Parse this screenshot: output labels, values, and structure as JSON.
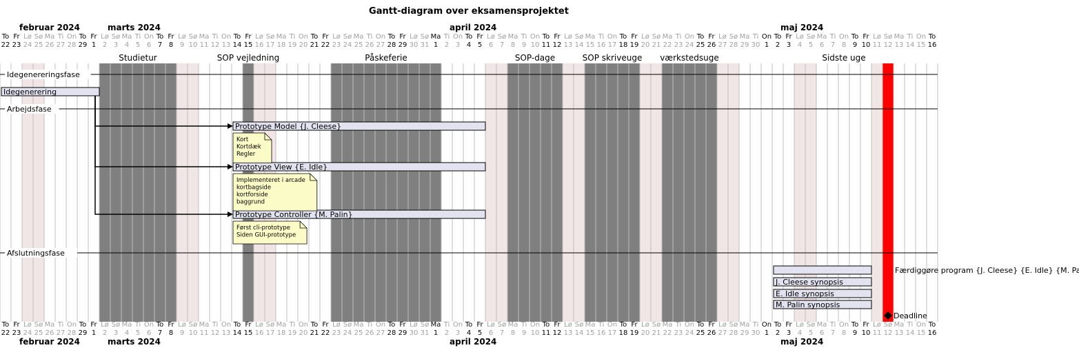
{
  "chart_data": {
    "type": "gantt",
    "title": "Gantt-diagram over eksamensprojektet",
    "start_date": "2024-02-22",
    "end_date": "2024-05-16",
    "day_names": [
      "Ma",
      "Ti",
      "On",
      "To",
      "Fr",
      "Lø",
      "Sø"
    ],
    "months": [
      {
        "label": "februar 2024",
        "start": "2024-02-22"
      },
      {
        "label": "marts 2024",
        "start": "2024-03-01"
      },
      {
        "label": "april 2024",
        "start": "2024-04-01"
      },
      {
        "label": "maj 2024",
        "start": "2024-05-01"
      }
    ],
    "closed_periods": [
      {
        "label": "Studietur",
        "start": "2024-03-02",
        "end": "2024-03-08"
      },
      {
        "label": "SOP vejledning",
        "start": "2024-03-15",
        "end": "2024-03-15"
      },
      {
        "label": "Påskeferie",
        "start": "2024-03-23",
        "end": "2024-04-01"
      },
      {
        "label": "SOP-dage",
        "start": "2024-04-08",
        "end": "2024-04-12"
      },
      {
        "label": "SOP skriveuge",
        "start": "2024-04-15",
        "end": "2024-04-19"
      },
      {
        "label": "værkstedsuge",
        "start": "2024-04-22",
        "end": "2024-04-26"
      }
    ],
    "labeled_periods": [
      {
        "label": "Sidste uge",
        "start": "2024-05-06",
        "end": "2024-05-10"
      }
    ],
    "highlight_days": [
      {
        "date": "2024-05-12",
        "color": "#ff0000"
      }
    ],
    "separators": [
      "Idegenereringsfase",
      "Arbejdsfase",
      "Afslutningsfase"
    ],
    "tasks": [
      {
        "label": "Idegenerering",
        "start": "2024-02-22",
        "end": "2024-03-01"
      },
      {
        "label": "Prototype Model {J. Cleese}",
        "start": "2024-03-14",
        "end": "2024-04-05"
      },
      {
        "label": "Prototype View {E. Idle}",
        "start": "2024-03-14",
        "end": "2024-04-05"
      },
      {
        "label": "Prototype Controller {M. Palin}",
        "start": "2024-03-14",
        "end": "2024-04-05"
      },
      {
        "label": "Færdiggøre program {J. Cleese} {E. Idle} {M. Palin}",
        "start": "2024-05-02",
        "end": "2024-05-10"
      },
      {
        "label": "J. Cleese synopsis",
        "start": "2024-05-02",
        "end": "2024-05-10"
      },
      {
        "label": "E. Idle synopsis",
        "start": "2024-05-02",
        "end": "2024-05-10"
      },
      {
        "label": "M. Palin synopsis",
        "start": "2024-05-02",
        "end": "2024-05-10"
      }
    ],
    "milestones": [
      {
        "label": "Deadline",
        "date": "2024-05-12"
      }
    ],
    "dependencies": [
      {
        "from": "Idegenerering",
        "to": "Prototype Model {J. Cleese}"
      },
      {
        "from": "Idegenerering",
        "to": "Prototype View {E. Idle}"
      },
      {
        "from": "Idegenerering",
        "to": "Prototype Controller {M. Palin}"
      }
    ],
    "notes": [
      {
        "task": "Prototype Model {J. Cleese}",
        "lines": [
          "Kort",
          "Kortdæk",
          "Regler"
        ]
      },
      {
        "task": "Prototype View {E. Idle}",
        "lines": [
          "Implementeret i arcade",
          "kortbagside",
          "kortforside",
          "baggrund"
        ]
      },
      {
        "task": "Prototype Controller {M. Palin}",
        "lines": [
          "Først cli-prototype",
          "Siden GUI-prototype"
        ]
      }
    ]
  },
  "colors": {
    "weekend": "#f1e5e5",
    "closed": "#808080",
    "task_fill": "#e2e2f0",
    "note_fill": "#fbfbc7",
    "deadline": "#ff0000"
  }
}
